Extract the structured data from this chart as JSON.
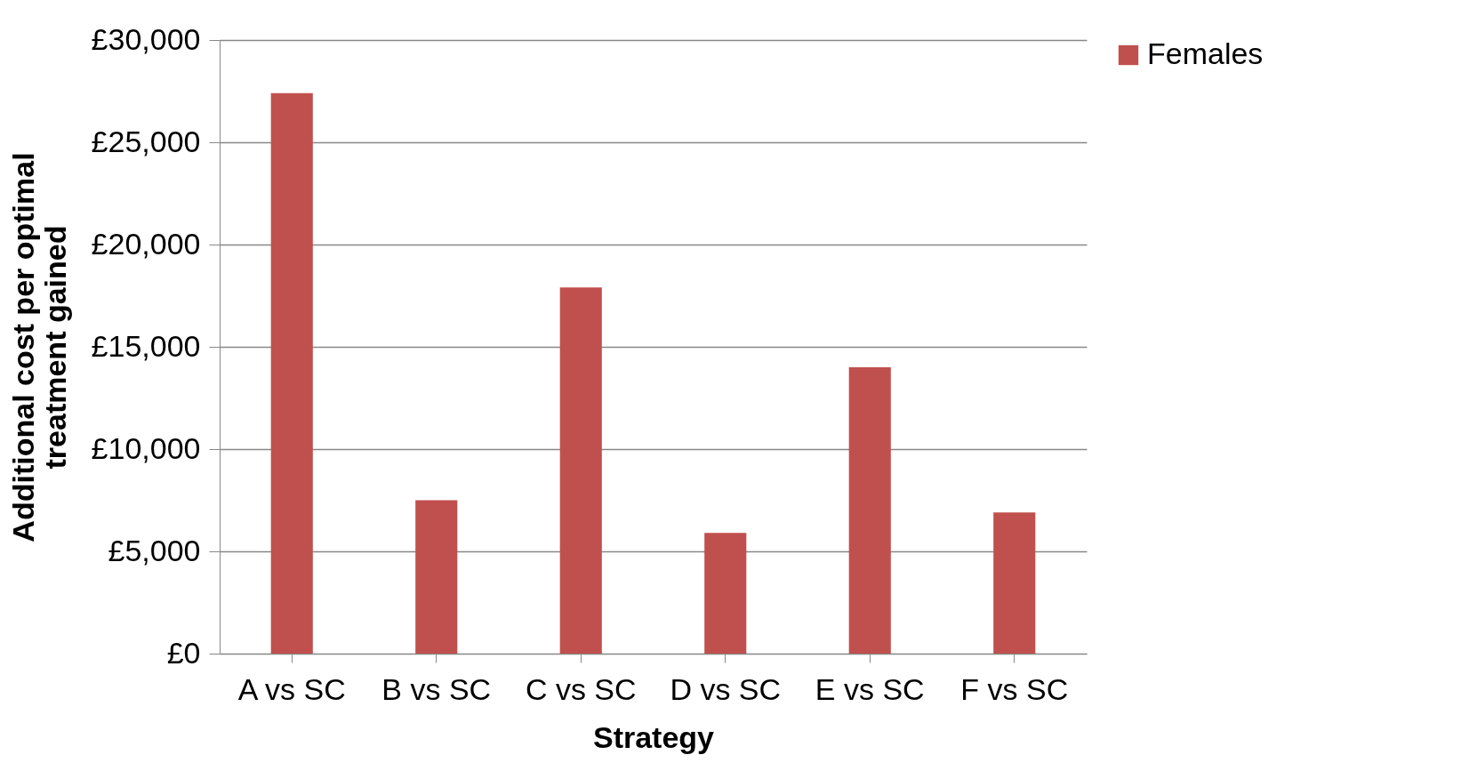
{
  "chart_data": {
    "type": "bar",
    "xlabel": "Strategy",
    "ylabel": "Additional cost per optimal treatment gained",
    "categories": [
      "A vs SC",
      "B vs SC",
      "C vs SC",
      "D vs SC",
      "E vs SC",
      "F vs SC"
    ],
    "series": [
      {
        "name": "Females",
        "color": "#c0504d",
        "values": [
          27400,
          7500,
          17900,
          5900,
          14000,
          6900
        ]
      }
    ],
    "ylim": [
      0,
      30000
    ],
    "yticks": [
      {
        "value": 0,
        "label": "£0"
      },
      {
        "value": 5000,
        "label": "£5,000"
      },
      {
        "value": 10000,
        "label": "£10,000"
      },
      {
        "value": 15000,
        "label": "£15,000"
      },
      {
        "value": 20000,
        "label": "£20,000"
      },
      {
        "value": 25000,
        "label": "£25,000"
      },
      {
        "value": 30000,
        "label": "£30,000"
      }
    ],
    "grid": "y",
    "legend": "right"
  }
}
